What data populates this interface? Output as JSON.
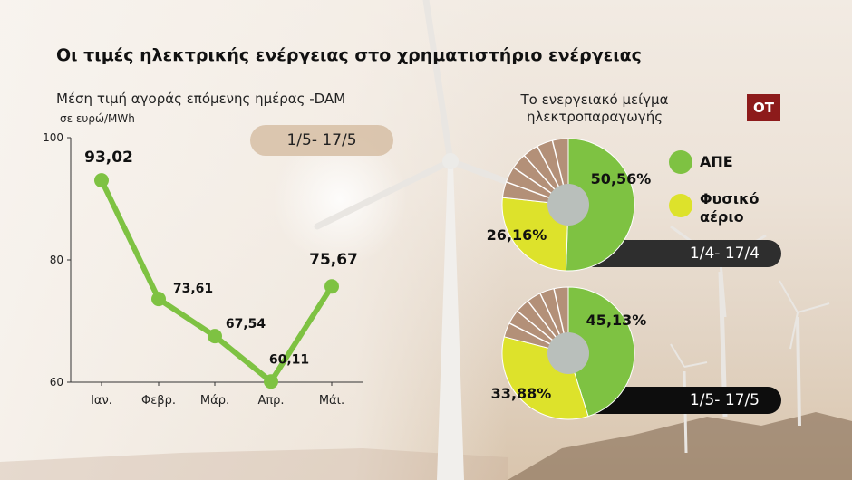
{
  "title": "Οι τιμές ηλεκτρικής ενέργειας στο χρηματιστήριο ενέργειας",
  "subtitle": "Μέση τιμή αγοράς επόμενης ημέρας -DAM",
  "unit": "σε ευρώ/MWh",
  "period_label": "1/5- 17/5",
  "mix_title": "Το ενεργειακό μείγμα ηλεκτροπαραγωγής",
  "logo_text": "OT",
  "legend": [
    {
      "label": "ΑΠΕ",
      "color": "#7ec242"
    },
    {
      "label": "Φυσικό αέριο",
      "color": "#dde22b"
    }
  ],
  "colors": {
    "line": "#7ec242",
    "gas": "#dde22b",
    "other": "#b39078",
    "hole": "#b9bfbb"
  },
  "chart_data": [
    {
      "type": "line",
      "title": "Μέση τιμή αγοράς επόμενης ημέρας -DAM",
      "ylabel": "σε ευρώ/MWh",
      "categories": [
        "Ιαν.",
        "Φεβρ.",
        "Μάρ.",
        "Απρ.",
        "Μάι."
      ],
      "values": [
        93.02,
        73.61,
        67.54,
        60.11,
        75.67
      ],
      "value_labels": [
        "93,02",
        "73,61",
        "67,54",
        "60,11",
        "75,67"
      ],
      "ylim": [
        60,
        100
      ],
      "yticks": [
        "100",
        "80",
        "60"
      ],
      "grid": false
    },
    {
      "type": "pie",
      "period": "1/4- 17/4",
      "slices": [
        {
          "name": "ΑΠΕ",
          "value": 50.56,
          "label": "50,56%"
        },
        {
          "name": "Φυσικό αέριο",
          "value": 26.16,
          "label": "26,16%"
        },
        {
          "name": "",
          "value": 23.28,
          "label": ""
        }
      ]
    },
    {
      "type": "pie",
      "period": "1/5- 17/5",
      "slices": [
        {
          "name": "ΑΠΕ",
          "value": 45.13,
          "label": "45,13%"
        },
        {
          "name": "Φυσικό αέριο",
          "value": 33.88,
          "label": "33,88%"
        },
        {
          "name": "",
          "value": 20.99,
          "label": ""
        }
      ]
    }
  ]
}
